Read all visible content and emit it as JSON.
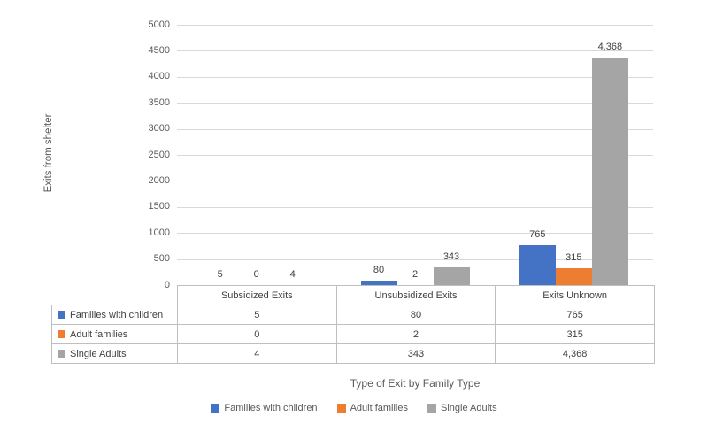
{
  "chart_data": {
    "type": "bar",
    "title": "",
    "xlabel": "Type of Exit by Family Type",
    "ylabel": "Exits from shelter",
    "categories": [
      "Subsidized Exits",
      "Unsubsidized Exits",
      "Exits Unknown"
    ],
    "series": [
      {
        "name": "Families with children",
        "color": "#4472C4",
        "values": [
          5,
          80,
          765
        ],
        "labels": [
          "5",
          "80",
          "765"
        ]
      },
      {
        "name": "Adult families",
        "color": "#ED7D31",
        "values": [
          0,
          2,
          315
        ],
        "labels": [
          "0",
          "2",
          "315"
        ]
      },
      {
        "name": "Single Adults",
        "color": "#A5A5A5",
        "values": [
          4,
          343,
          4368
        ],
        "labels": [
          "4",
          "343",
          "4,368"
        ]
      }
    ],
    "ylim": [
      0,
      5000
    ],
    "yticks": [
      "0",
      "500",
      "1000",
      "1500",
      "2000",
      "2500",
      "3000",
      "3500",
      "4000",
      "4500",
      "5000"
    ],
    "grid": true,
    "legend_position": "bottom",
    "data_table_shown": true,
    "gridline_color": "#D9D9D9",
    "table_border_color": "#BFBFBF"
  }
}
